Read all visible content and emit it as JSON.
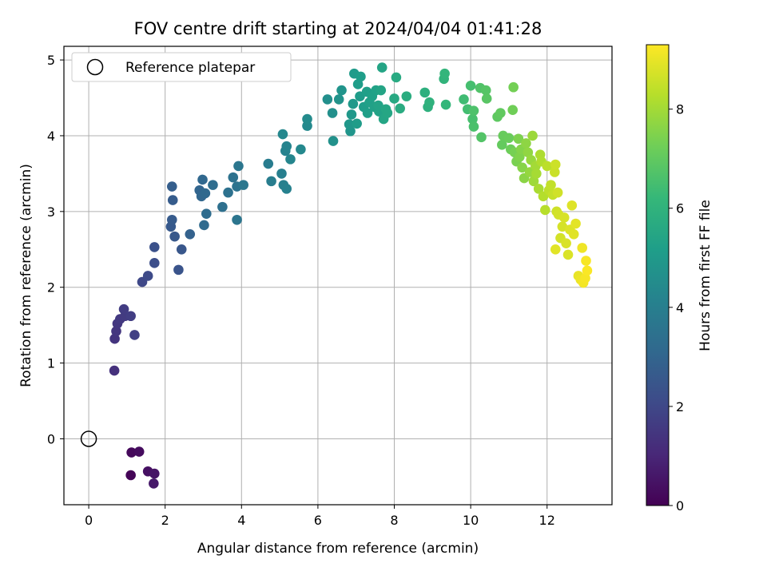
{
  "chart_data": {
    "type": "scatter",
    "title": "FOV centre drift starting at 2024/04/04 01:41:28",
    "xlabel": "Angular distance from reference (arcmin)",
    "ylabel": "Rotation from reference (arcmin)",
    "xlim": [
      -0.65,
      13.7
    ],
    "ylim": [
      -0.87,
      5.18
    ],
    "xticks": [
      0,
      2,
      4,
      6,
      8,
      10,
      12
    ],
    "yticks": [
      0,
      1,
      2,
      3,
      4,
      5
    ],
    "grid": true,
    "legend": {
      "placement": "top-left",
      "entries": [
        "Reference platepar"
      ]
    },
    "reference_point": {
      "name": "Reference platepar",
      "x": 0,
      "y": 0,
      "marker": "open-circle"
    },
    "colorbar": {
      "label": "Hours from first FF file",
      "min": 0,
      "max": 9.3,
      "ticks": [
        0,
        2,
        4,
        6,
        8
      ],
      "colormap": "viridis"
    },
    "colormap_stops": [
      "#440154",
      "#482878",
      "#3e4a89",
      "#31688e",
      "#26828e",
      "#1f9e89",
      "#35b779",
      "#6ece58",
      "#b5de2b",
      "#fde725"
    ],
    "series": [
      {
        "color_by": "hours",
        "points": [
          [
            1.1,
            -0.48,
            0.1
          ],
          [
            1.12,
            -0.18,
            0.2
          ],
          [
            1.32,
            -0.17,
            0.3
          ],
          [
            1.55,
            -0.43,
            0.4
          ],
          [
            1.72,
            -0.46,
            0.5
          ],
          [
            1.7,
            -0.59,
            0.6
          ],
          [
            0.67,
            0.9,
            1.3
          ],
          [
            0.68,
            1.32,
            1.4
          ],
          [
            0.72,
            1.42,
            1.45
          ],
          [
            0.75,
            1.52,
            1.5
          ],
          [
            0.82,
            1.58,
            1.55
          ],
          [
            0.95,
            1.62,
            1.6
          ],
          [
            0.92,
            1.71,
            1.65
          ],
          [
            1.1,
            1.62,
            1.7
          ],
          [
            1.2,
            1.37,
            1.75
          ],
          [
            1.4,
            2.07,
            2.0
          ],
          [
            1.55,
            2.15,
            2.1
          ],
          [
            1.72,
            2.32,
            2.2
          ],
          [
            1.72,
            2.53,
            2.3
          ],
          [
            2.35,
            2.23,
            2.4
          ],
          [
            2.43,
            2.5,
            2.5
          ],
          [
            2.25,
            2.67,
            2.55
          ],
          [
            2.15,
            2.8,
            2.6
          ],
          [
            2.18,
            2.89,
            2.65
          ],
          [
            2.2,
            3.15,
            2.7
          ],
          [
            2.18,
            3.33,
            2.75
          ],
          [
            2.65,
            2.7,
            2.9
          ],
          [
            2.9,
            3.28,
            3.0
          ],
          [
            2.95,
            3.2,
            3.05
          ],
          [
            2.98,
            3.42,
            3.1
          ],
          [
            3.05,
            3.24,
            3.15
          ],
          [
            3.02,
            2.82,
            3.2
          ],
          [
            3.08,
            2.97,
            3.25
          ],
          [
            3.25,
            3.35,
            3.3
          ],
          [
            3.5,
            3.06,
            3.4
          ],
          [
            3.65,
            3.25,
            3.45
          ],
          [
            3.78,
            3.45,
            3.5
          ],
          [
            3.88,
            3.33,
            3.55
          ],
          [
            3.88,
            2.89,
            3.6
          ],
          [
            3.92,
            3.6,
            3.65
          ],
          [
            4.05,
            3.35,
            3.7
          ],
          [
            4.7,
            3.63,
            3.9
          ],
          [
            4.78,
            3.4,
            3.95
          ],
          [
            5.05,
            3.5,
            4.0
          ],
          [
            5.1,
            3.35,
            4.05
          ],
          [
            5.18,
            3.3,
            4.1
          ],
          [
            5.15,
            3.8,
            4.15
          ],
          [
            5.18,
            3.86,
            4.2
          ],
          [
            5.28,
            3.69,
            4.25
          ],
          [
            5.08,
            4.02,
            4.3
          ],
          [
            5.55,
            3.82,
            4.35
          ],
          [
            5.72,
            4.13,
            4.4
          ],
          [
            5.72,
            4.22,
            4.45
          ],
          [
            6.25,
            4.48,
            4.6
          ],
          [
            6.38,
            4.3,
            4.65
          ],
          [
            6.4,
            3.93,
            4.7
          ],
          [
            6.55,
            4.48,
            4.75
          ],
          [
            6.62,
            4.6,
            4.8
          ],
          [
            6.85,
            4.06,
            4.85
          ],
          [
            6.82,
            4.15,
            4.9
          ],
          [
            6.88,
            4.28,
            4.95
          ],
          [
            6.92,
            4.42,
            5.0
          ],
          [
            6.95,
            4.82,
            5.05
          ],
          [
            7.02,
            4.16,
            5.08
          ],
          [
            7.1,
            4.52,
            5.1
          ],
          [
            7.05,
            4.68,
            5.12
          ],
          [
            7.12,
            4.78,
            5.15
          ],
          [
            7.2,
            4.38,
            5.18
          ],
          [
            7.28,
            4.58,
            5.2
          ],
          [
            7.3,
            4.3,
            5.22
          ],
          [
            7.35,
            4.44,
            5.25
          ],
          [
            7.42,
            4.52,
            5.28
          ],
          [
            7.48,
            4.38,
            5.3
          ],
          [
            7.52,
            4.6,
            5.32
          ],
          [
            7.6,
            4.32,
            5.35
          ],
          [
            7.58,
            4.4,
            5.38
          ],
          [
            7.65,
            4.6,
            5.4
          ],
          [
            7.68,
            4.9,
            5.42
          ],
          [
            7.72,
            4.22,
            5.45
          ],
          [
            7.78,
            4.35,
            5.48
          ],
          [
            7.82,
            4.3,
            5.5
          ],
          [
            8.0,
            4.49,
            5.6
          ],
          [
            8.05,
            4.77,
            5.65
          ],
          [
            8.15,
            4.36,
            5.7
          ],
          [
            8.32,
            4.52,
            5.75
          ],
          [
            8.8,
            4.57,
            5.85
          ],
          [
            8.88,
            4.38,
            5.9
          ],
          [
            8.92,
            4.44,
            5.95
          ],
          [
            9.3,
            4.75,
            6.05
          ],
          [
            9.32,
            4.82,
            6.1
          ],
          [
            9.35,
            4.41,
            6.15
          ],
          [
            9.82,
            4.48,
            6.4
          ],
          [
            9.92,
            4.35,
            6.45
          ],
          [
            10.0,
            4.66,
            6.5
          ],
          [
            10.05,
            4.22,
            6.55
          ],
          [
            10.08,
            4.12,
            6.6
          ],
          [
            10.08,
            4.33,
            6.65
          ],
          [
            10.25,
            4.63,
            6.7
          ],
          [
            10.28,
            3.98,
            6.75
          ],
          [
            10.4,
            4.6,
            6.8
          ],
          [
            10.42,
            4.49,
            6.85
          ],
          [
            10.7,
            4.25,
            6.95
          ],
          [
            10.78,
            4.3,
            7.0
          ],
          [
            10.82,
            3.88,
            7.05
          ],
          [
            10.85,
            4.0,
            7.1
          ],
          [
            11.0,
            3.97,
            7.15
          ],
          [
            11.05,
            3.82,
            7.2
          ],
          [
            11.1,
            4.34,
            7.25
          ],
          [
            11.12,
            4.64,
            7.3
          ],
          [
            11.15,
            3.78,
            7.35
          ],
          [
            11.2,
            3.66,
            7.4
          ],
          [
            11.25,
            3.96,
            7.45
          ],
          [
            11.28,
            3.72,
            7.5
          ],
          [
            11.32,
            3.82,
            7.55
          ],
          [
            11.35,
            3.58,
            7.6
          ],
          [
            11.4,
            3.44,
            7.65
          ],
          [
            11.45,
            3.9,
            7.7
          ],
          [
            11.5,
            3.78,
            7.75
          ],
          [
            11.55,
            3.52,
            7.8
          ],
          [
            11.58,
            3.68,
            7.85
          ],
          [
            11.62,
            4.0,
            7.9
          ],
          [
            11.65,
            3.4,
            7.95
          ],
          [
            11.7,
            3.6,
            8.0
          ],
          [
            11.72,
            3.5,
            8.05
          ],
          [
            11.78,
            3.3,
            8.1
          ],
          [
            11.82,
            3.75,
            8.15
          ],
          [
            11.85,
            3.66,
            8.2
          ],
          [
            11.9,
            3.2,
            8.25
          ],
          [
            11.95,
            3.02,
            8.3
          ],
          [
            12.0,
            3.6,
            8.35
          ],
          [
            12.05,
            3.28,
            8.4
          ],
          [
            12.1,
            3.35,
            8.45
          ],
          [
            12.15,
            3.22,
            8.5
          ],
          [
            12.2,
            3.52,
            8.55
          ],
          [
            12.22,
            3.62,
            8.6
          ],
          [
            12.25,
            3.0,
            8.62
          ],
          [
            12.28,
            3.25,
            8.65
          ],
          [
            12.3,
            2.96,
            8.68
          ],
          [
            12.35,
            2.65,
            8.7
          ],
          [
            12.4,
            2.8,
            8.72
          ],
          [
            12.45,
            2.92,
            8.75
          ],
          [
            12.5,
            2.58,
            8.78
          ],
          [
            12.55,
            2.43,
            8.8
          ],
          [
            12.6,
            2.76,
            8.82
          ],
          [
            12.65,
            3.08,
            8.85
          ],
          [
            12.7,
            2.7,
            8.88
          ],
          [
            12.22,
            2.5,
            8.9
          ],
          [
            12.75,
            2.84,
            8.92
          ],
          [
            12.82,
            2.15,
            9.0
          ],
          [
            12.88,
            2.1,
            9.05
          ],
          [
            12.92,
            2.52,
            9.1
          ],
          [
            12.95,
            2.06,
            9.15
          ],
          [
            13.0,
            2.12,
            9.2
          ],
          [
            13.02,
            2.35,
            9.22
          ],
          [
            13.05,
            2.22,
            9.25
          ]
        ]
      }
    ]
  }
}
